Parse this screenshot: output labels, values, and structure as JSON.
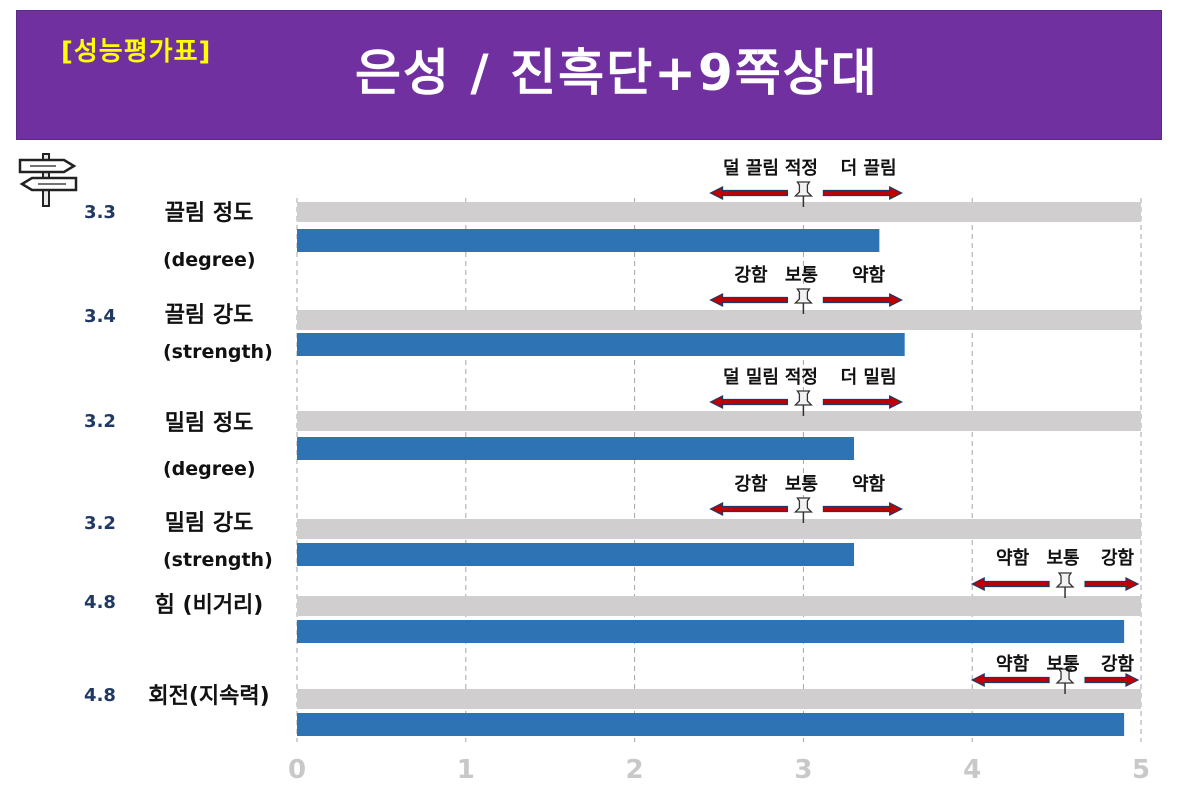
{
  "header": {
    "tag": "[성능평가표]",
    "title": "은성 / 진흑단+9쪽상대"
  },
  "colors": {
    "header_bg": "#7030a0",
    "tag_text": "#ffff00",
    "bar": "#2e74b5",
    "track": "#d0cece",
    "arrow": "#c00000",
    "value_text": "#1f3864"
  },
  "icons": [
    "signpost-icon",
    "pushpin-icon",
    "arrow-left-icon",
    "arrow-right-icon"
  ],
  "chart_data": {
    "type": "bar",
    "orientation": "horizontal",
    "xlim": [
      0,
      5
    ],
    "x_ticks": [
      "0",
      "1",
      "2",
      "3",
      "4",
      "5"
    ],
    "grid": true,
    "rows": [
      {
        "value": 3.3,
        "value_label": "3.3",
        "label": "끌림 정도",
        "sub_label": "(degree)",
        "bar_value": 3.45,
        "scale": {
          "left": "덜 끌림",
          "mid": "적정",
          "right": "더 끌림",
          "pin": 3.0,
          "start": 2.45,
          "end": 3.6
        }
      },
      {
        "value": 3.4,
        "value_label": "3.4",
        "label": "끌림 강도",
        "sub_label": "(strength)",
        "bar_value": 3.6,
        "scale": {
          "left": "강함",
          "mid": "보통",
          "right": "약함",
          "pin": 3.0,
          "start": 2.45,
          "end": 3.6
        }
      },
      {
        "value": 3.2,
        "value_label": "3.2",
        "label": "밀림 정도",
        "sub_label": "(degree)",
        "bar_value": 3.3,
        "scale": {
          "left": "덜 밀림",
          "mid": "적정",
          "right": "더 밀림",
          "pin": 3.0,
          "start": 2.45,
          "end": 3.6
        }
      },
      {
        "value": 3.2,
        "value_label": "3.2",
        "label": "밀림 강도",
        "sub_label": "(strength)",
        "bar_value": 3.3,
        "scale": {
          "left": "강함",
          "mid": "보통",
          "right": "약함",
          "pin": 3.0,
          "start": 2.45,
          "end": 3.6
        }
      },
      {
        "value": 4.8,
        "value_label": "4.8",
        "label": "힘 (비거리)",
        "sub_label": "",
        "bar_value": 4.9,
        "scale": {
          "left": "약함",
          "mid": "보통",
          "right": "강함",
          "pin": 4.55,
          "start": 4.0,
          "end": 5.0
        }
      },
      {
        "value": 4.8,
        "value_label": "4.8",
        "label": "회전(지속력)",
        "sub_label": "",
        "bar_value": 4.9,
        "scale": {
          "left": "약함",
          "mid": "보통",
          "right": "강함",
          "pin": 4.55,
          "start": 4.0,
          "end": 5.0
        }
      }
    ]
  }
}
